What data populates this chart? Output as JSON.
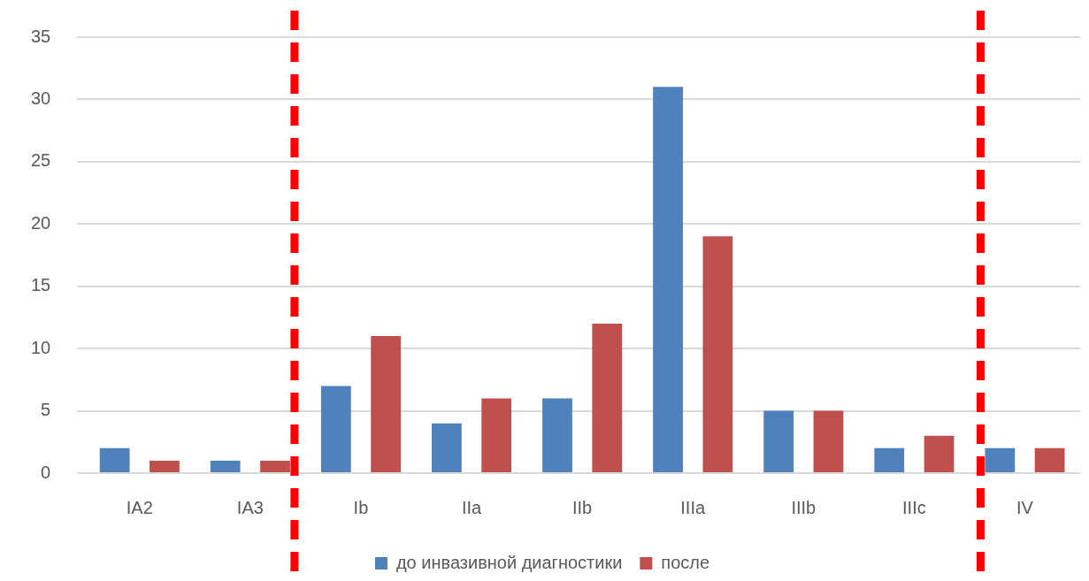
{
  "chart_data": {
    "type": "bar",
    "categories": [
      "IA2",
      "IA3",
      "Ib",
      "IIa",
      "IIb",
      "IIIa",
      "IIIb",
      "IIIc",
      "IV"
    ],
    "series": [
      {
        "name": "до инвазивной диагностики",
        "color": "#4f81bd",
        "values": [
          2,
          1,
          7,
          4,
          6,
          31,
          5,
          2,
          2
        ]
      },
      {
        "name": "после",
        "color": "#c0504d",
        "values": [
          1,
          1,
          11,
          6,
          12,
          19,
          5,
          3,
          2
        ]
      }
    ],
    "ylim": [
      0,
      35
    ],
    "yticks": [
      0,
      5,
      10,
      15,
      20,
      25,
      30,
      35
    ],
    "grid": "y",
    "legend": "bottom"
  }
}
